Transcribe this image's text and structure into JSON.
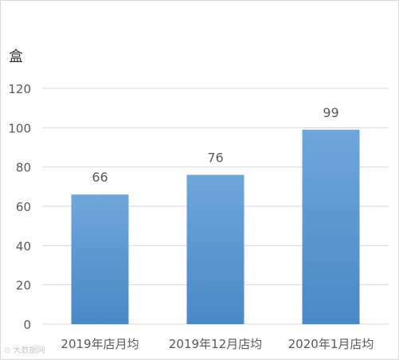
{
  "chart_data": {
    "type": "bar",
    "title": "",
    "unit_label": "盒",
    "categories": [
      "2019年店月均",
      "2019年12月店均",
      "2020年1月店均"
    ],
    "values": [
      66,
      76,
      99
    ],
    "data_labels": [
      "66",
      "76",
      "99"
    ],
    "ylim": [
      0,
      120
    ],
    "yticks": [
      "0",
      "20",
      "40",
      "60",
      "80",
      "100",
      "120"
    ],
    "grid": true,
    "colors": {
      "bar_top": "#6fa6db",
      "bar_bottom": "#4a88c7",
      "grid": "#d9d9d9",
      "text": "#595959"
    }
  }
}
